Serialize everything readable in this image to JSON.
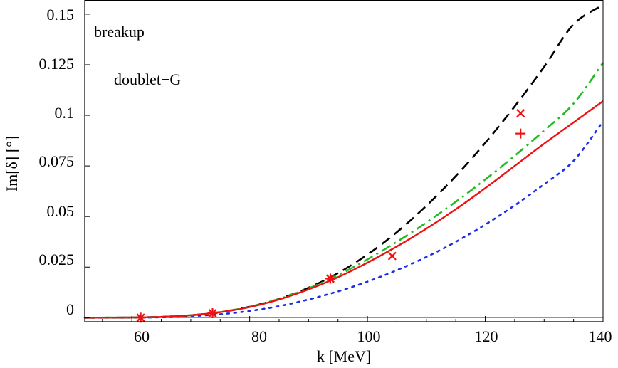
{
  "chart_data": {
    "type": "line",
    "title": "",
    "xlabel": "k [MeV]",
    "ylabel": "Im[δ] [°]",
    "xlim": [
      52,
      140
    ],
    "ylim": [
      -0.002,
      0.157
    ],
    "x_ticks": [
      60,
      80,
      100,
      120,
      140
    ],
    "x_tick_labels": [
      "60",
      "80",
      "100",
      "120",
      "140"
    ],
    "y_ticks": [
      0,
      0.025,
      0.05,
      0.075,
      0.1,
      0.125,
      0.15
    ],
    "y_tick_labels": [
      "0",
      "0.025",
      "0.05",
      "0.075",
      "0.1",
      "0.125",
      "0.15"
    ],
    "annotations": [
      "breakup",
      "doublet−G"
    ],
    "colors": {
      "baseline": "#7a7ad0",
      "frame": "#000000",
      "black_dashed": "#000000",
      "green_dashdot": "#22bb22",
      "red_solid": "#ee1111",
      "blue_dotted": "#1a2ee0",
      "markers": "#ee1111"
    },
    "x": [
      52,
      60,
      65,
      70,
      75,
      80,
      85,
      90,
      95,
      100,
      105,
      110,
      115,
      120,
      125,
      130,
      135,
      140
    ],
    "series": [
      {
        "name": "black dashed",
        "style": "dashed",
        "values": [
          0,
          0.0001,
          0.0004,
          0.0012,
          0.0028,
          0.0054,
          0.0093,
          0.0148,
          0.022,
          0.0312,
          0.0423,
          0.0553,
          0.07,
          0.0864,
          0.1044,
          0.124,
          0.145,
          0.1545
        ]
      },
      {
        "name": "green dash-dot",
        "style": "dashdot",
        "values": [
          0,
          0.0001,
          0.0004,
          0.0012,
          0.0028,
          0.0054,
          0.0093,
          0.0145,
          0.021,
          0.0288,
          0.0375,
          0.047,
          0.0573,
          0.0683,
          0.08,
          0.0925,
          0.1058,
          0.126
        ]
      },
      {
        "name": "red solid",
        "style": "solid",
        "values": [
          0,
          0.0001,
          0.0004,
          0.0012,
          0.0027,
          0.0052,
          0.009,
          0.014,
          0.02,
          0.0272,
          0.0352,
          0.044,
          0.0536,
          0.064,
          0.075,
          0.086,
          0.0965,
          0.107
        ]
      },
      {
        "name": "blue dotted",
        "style": "dotted",
        "values": [
          0,
          0.0,
          0.0002,
          0.0007,
          0.0017,
          0.0033,
          0.0057,
          0.009,
          0.013,
          0.0178,
          0.0235,
          0.03,
          0.0375,
          0.046,
          0.0555,
          0.066,
          0.0775,
          0.097
        ]
      }
    ],
    "markers": [
      {
        "shape": "asterisk",
        "x": 61.5,
        "y": 0.0
      },
      {
        "shape": "asterisk",
        "x": 73.7,
        "y": 0.0022
      },
      {
        "shape": "asterisk",
        "x": 93.7,
        "y": 0.0193
      },
      {
        "shape": "cross",
        "x": 104.2,
        "y": 0.0305
      },
      {
        "shape": "cross",
        "x": 126.0,
        "y": 0.101
      },
      {
        "shape": "plus",
        "x": 126.0,
        "y": 0.091
      }
    ]
  }
}
